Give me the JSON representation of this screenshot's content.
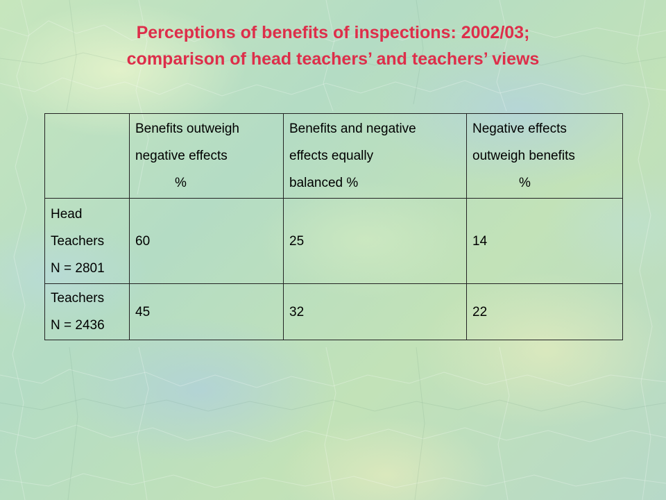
{
  "slide": {
    "title_line1": "Perceptions of benefits of inspections: 2002/03;",
    "title_line2": "comparison of head teachers’ and teachers’ views",
    "title_color": "#dd2e4a",
    "background_color": "#b9dfb4"
  },
  "table": {
    "columns": [
      {
        "line1": "",
        "line2": "",
        "line3": ""
      },
      {
        "line1": "Benefits outweigh",
        "line2": "negative effects",
        "line3": "%"
      },
      {
        "line1": "Benefits and negative",
        "line2": "effects equally",
        "line3": "balanced %"
      },
      {
        "line1": "Negative effects",
        "line2": "outweigh benefits",
        "line3": "%"
      }
    ],
    "rows": [
      {
        "label_line1": "Head",
        "label_line2": "Teachers",
        "label_line3": "N = 2801",
        "values": [
          "60",
          "25",
          "14"
        ]
      },
      {
        "label_line1": "Teachers",
        "label_line2": "N = 2436",
        "values": [
          "45",
          "32",
          "22"
        ]
      }
    ]
  }
}
